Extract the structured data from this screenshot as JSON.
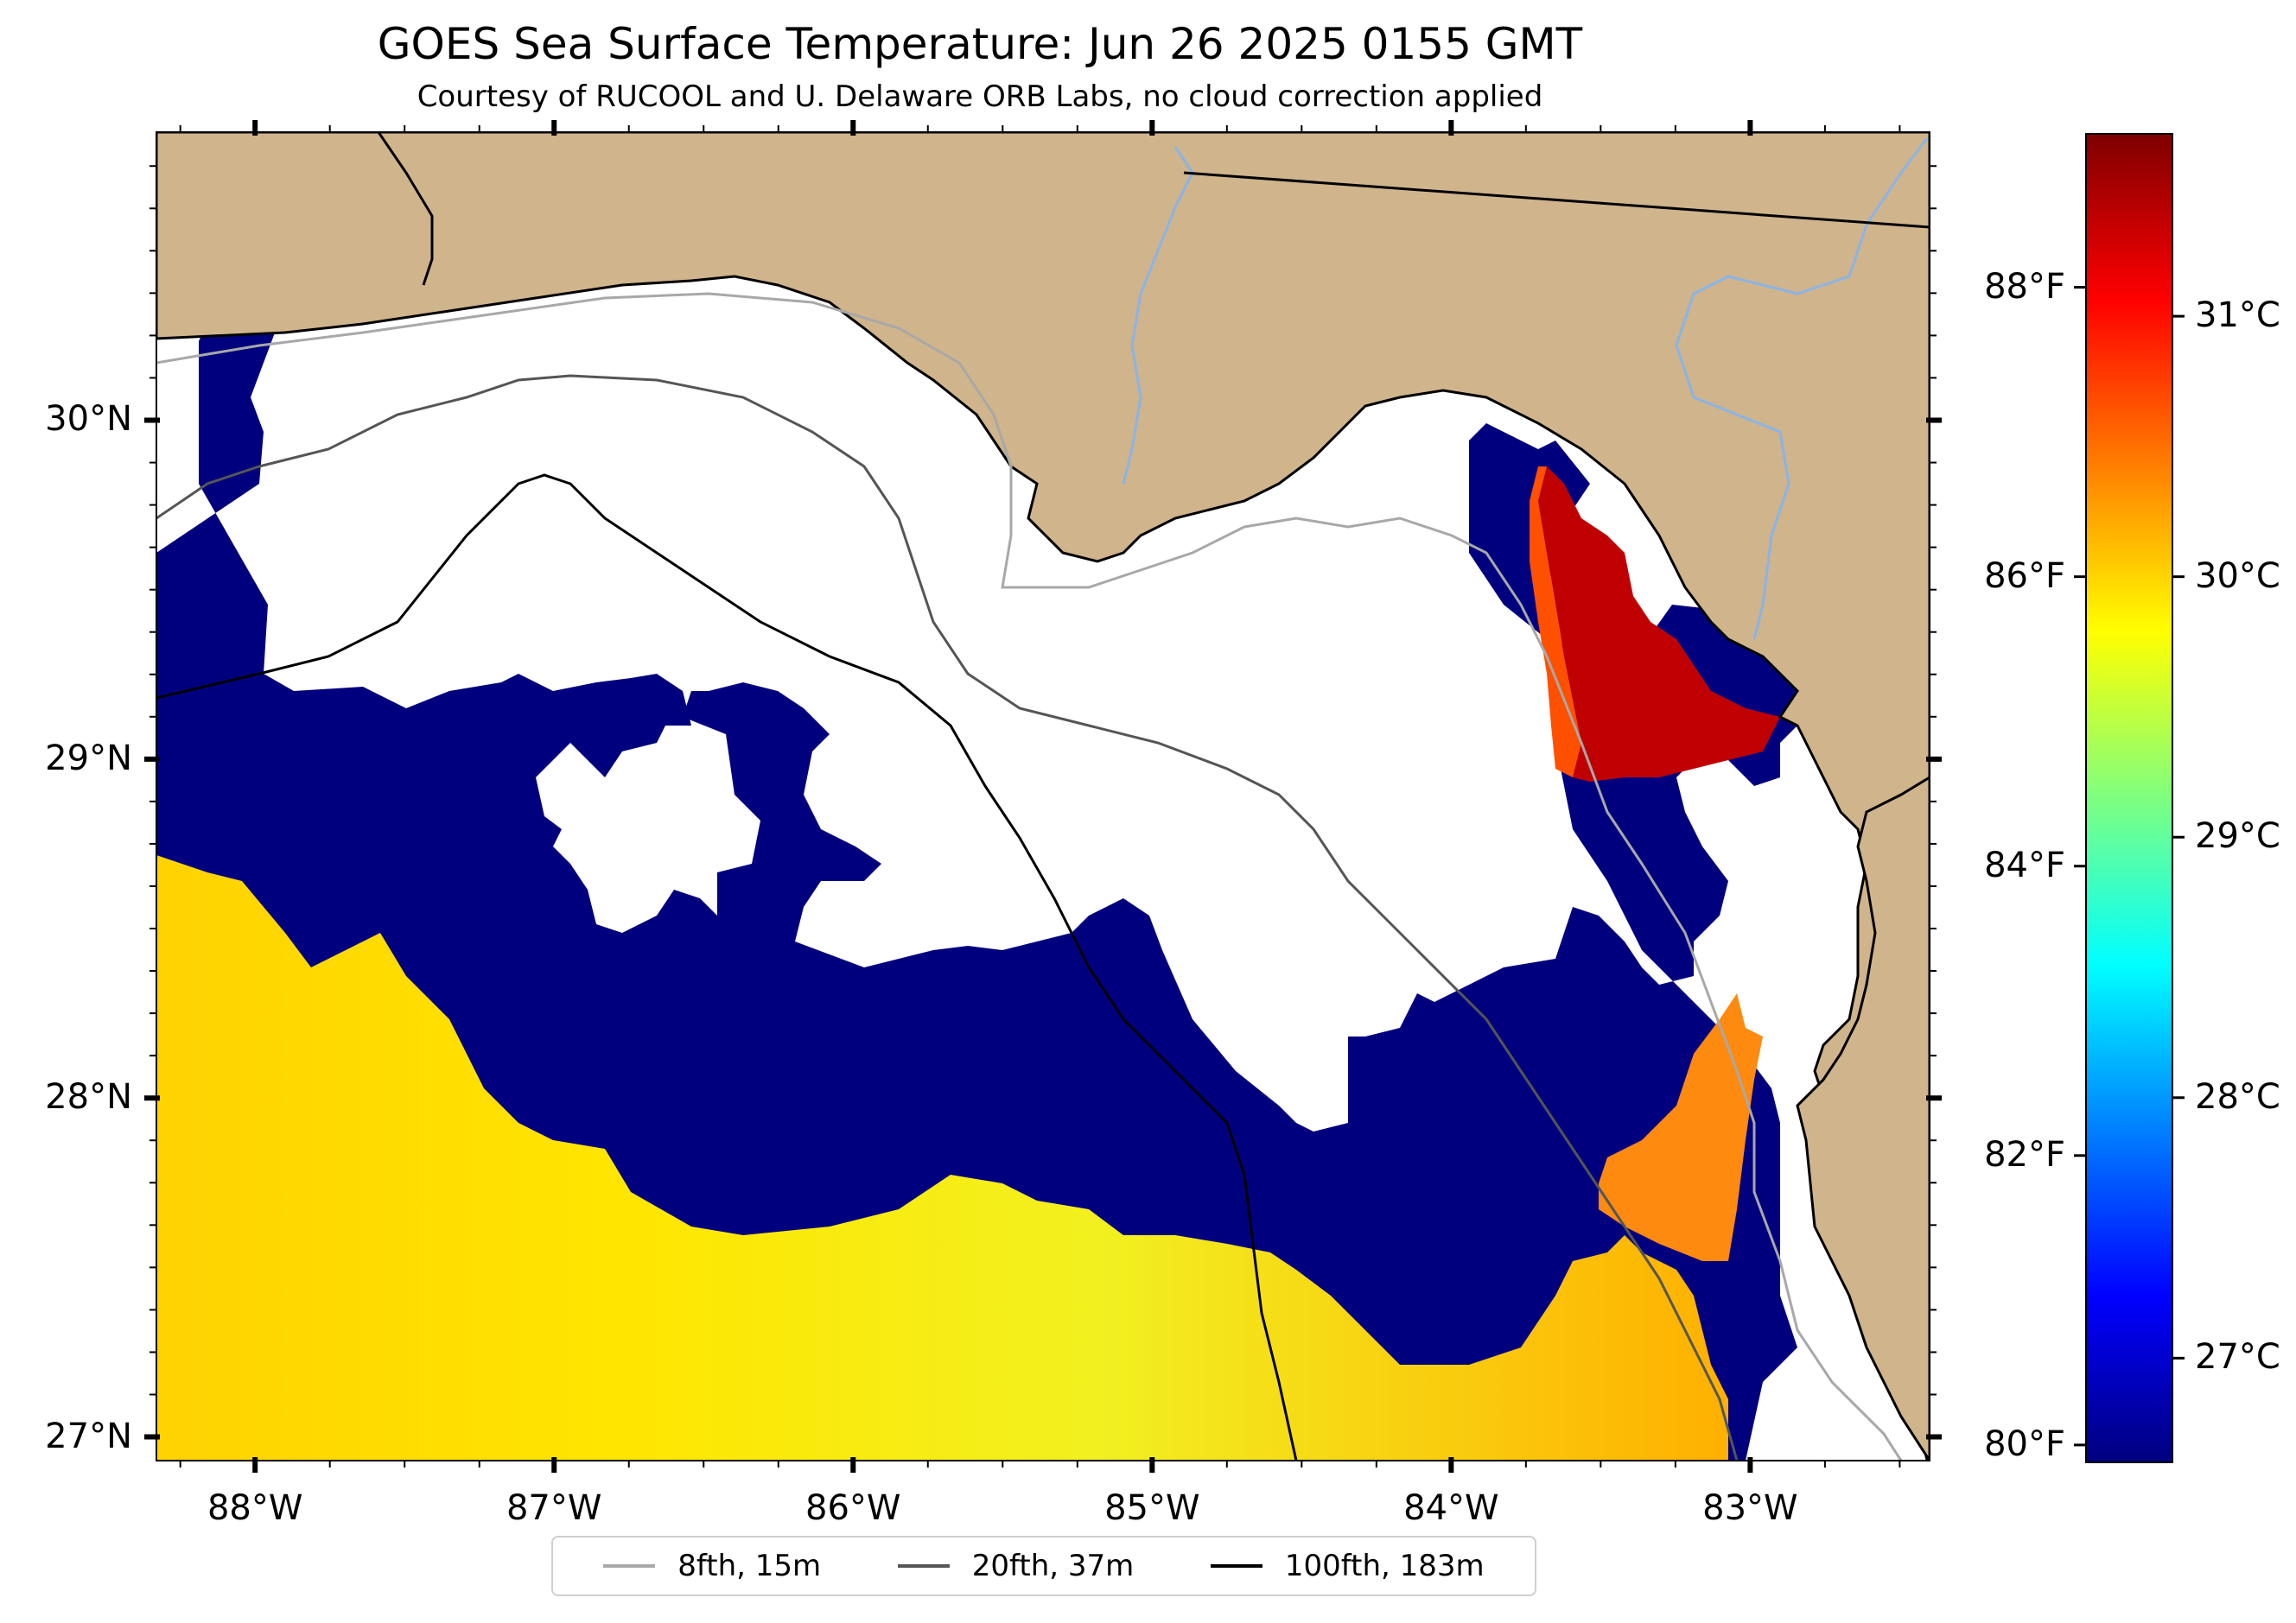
{
  "title": "GOES Sea Surface Temperature: Jun 26 2025 0155 GMT",
  "subtitle": "Courtesy of RUCOOL and U. Delaware ORB Labs, no cloud correction applied",
  "map": {
    "region": "Gulf of Mexico - Florida Big Bend / Panhandle",
    "lon_range": [
      -88.33,
      -82.4
    ],
    "lat_range": [
      26.93,
      30.85
    ],
    "colors": {
      "land": "#d0b48c",
      "cloud_mask": "#ffffff",
      "cool_water": "#00007f",
      "border_lines": "#000000",
      "rivers": "#8ab4e6"
    }
  },
  "axes": {
    "x_ticks": [
      {
        "value": -88,
        "label": "88°W"
      },
      {
        "value": -87,
        "label": "87°W"
      },
      {
        "value": -86,
        "label": "86°W"
      },
      {
        "value": -85,
        "label": "85°W"
      },
      {
        "value": -84,
        "label": "84°W"
      },
      {
        "value": -83,
        "label": "83°W"
      }
    ],
    "y_ticks": [
      {
        "value": 30,
        "label": "30°N"
      },
      {
        "value": 29,
        "label": "29°N"
      },
      {
        "value": 28,
        "label": "28°N"
      },
      {
        "value": 27,
        "label": "27°N"
      }
    ],
    "fahrenheit_ticks": [
      {
        "value": 88,
        "label": "88°F"
      },
      {
        "value": 86,
        "label": "86°F"
      },
      {
        "value": 84,
        "label": "84°F"
      },
      {
        "value": 82,
        "label": "82°F"
      },
      {
        "value": 80,
        "label": "80°F"
      }
    ]
  },
  "colorbar": {
    "range_c": [
      26.6,
      31.7
    ],
    "ticks": [
      {
        "value": 31,
        "label": "31°C"
      },
      {
        "value": 30,
        "label": "30°C"
      },
      {
        "value": 29,
        "label": "29°C"
      },
      {
        "value": 28,
        "label": "28°C"
      },
      {
        "value": 27,
        "label": "27°C"
      }
    ],
    "colormap": [
      "#00007f",
      "#0000ff",
      "#007fff",
      "#00ffff",
      "#7fff7f",
      "#ffff00",
      "#ff7f00",
      "#ff0000",
      "#7f0000"
    ]
  },
  "legend": [
    {
      "label": "8fth, 15m",
      "color": "#a8a8a8"
    },
    {
      "label": "20fth, 37m",
      "color": "#555555"
    },
    {
      "label": "100fth, 183m",
      "color": "#000000"
    }
  ]
}
